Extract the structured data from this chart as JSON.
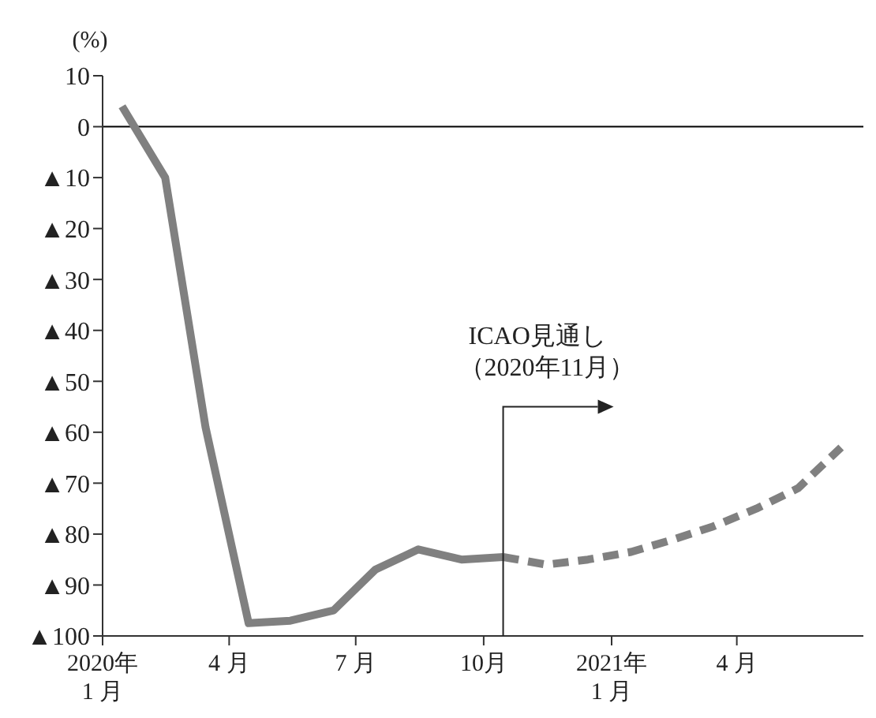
{
  "chart_data": {
    "type": "line",
    "ylabel": "(%)",
    "xlim": [
      "2020-01-01",
      "2021-07-01"
    ],
    "xticks": [
      {
        "value": "2020-01-01",
        "label": "2020年\n1 月"
      },
      {
        "value": "2020-04-01",
        "label": "4 月"
      },
      {
        "value": "2020-07-01",
        "label": "7 月"
      },
      {
        "value": "2020-10-01",
        "label": "10月"
      },
      {
        "value": "2021-01-01",
        "label": "2021年\n1 月"
      },
      {
        "value": "2021-04-01",
        "label": "4 月"
      }
    ],
    "ylim": [
      -100,
      10
    ],
    "yticks": [
      10,
      0,
      {
        "value": -10,
        "label": "▲10"
      },
      {
        "value": -20,
        "label": "▲20"
      },
      {
        "value": -30,
        "label": "▲30"
      },
      {
        "value": -40,
        "label": "▲40"
      },
      {
        "value": -50,
        "label": "▲50"
      },
      {
        "value": -60,
        "label": "▲60"
      },
      {
        "value": -70,
        "label": "▲70"
      },
      {
        "value": -80,
        "label": "▲80"
      },
      {
        "value": -90,
        "label": "▲90"
      },
      {
        "value": -100,
        "label": "▲100"
      }
    ],
    "marker": "none",
    "series": [
      {
        "color": "#808080",
        "line_style": "solid",
        "x": [
          "2020-01-15",
          "2020-02-15",
          "2020-03-15",
          "2020-04-15",
          "2020-05-15",
          "2020-06-15",
          "2020-07-15",
          "2020-08-15",
          "2020-09-15",
          "2020-10-15"
        ],
        "values": [
          4,
          -10,
          -59,
          -97.5,
          -97,
          -95,
          -87,
          -83,
          -85,
          -84.5
        ]
      },
      {
        "color": "#808080",
        "line_style": "dashed",
        "x": [
          "2020-10-15",
          "2020-11-15",
          "2020-12-15",
          "2021-01-15",
          "2021-02-15",
          "2021-03-15",
          "2021-04-15",
          "2021-05-15",
          "2021-06-15"
        ],
        "values": [
          -84.5,
          -86,
          -85,
          -83.5,
          -81,
          -78.5,
          -75,
          -71,
          -63
        ]
      }
    ],
    "ref_lines": [
      {
        "axis": "y",
        "value": 0,
        "color": "#000000"
      }
    ],
    "annotations": [
      "ICAO見通し（2020年11月）"
    ]
  }
}
